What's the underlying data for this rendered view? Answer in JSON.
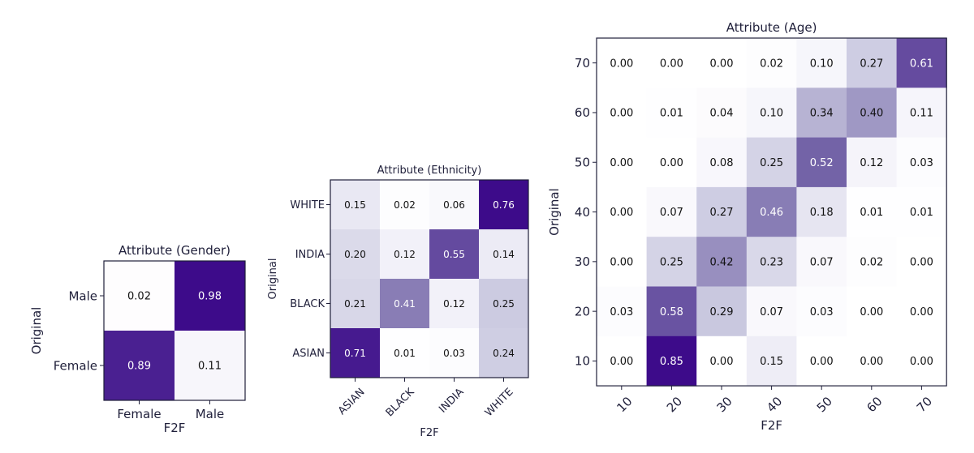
{
  "colors": {
    "dark": "#3d0b8a",
    "mid": "#7566a8",
    "light": "#c7c6de",
    "lightest": "#f4f3fa",
    "axis": "#1f1f3a"
  },
  "chart_data": [
    {
      "type": "heatmap",
      "title": "Attribute (Gender)",
      "xlabel": "F2F",
      "ylabel": "Original",
      "x_categories": [
        "Female",
        "Male"
      ],
      "y_categories_top_to_bottom": [
        "Male",
        "Female"
      ],
      "values": [
        [
          0.02,
          0.98
        ],
        [
          0.89,
          0.11
        ]
      ]
    },
    {
      "type": "heatmap",
      "title": "Attribute (Ethnicity)",
      "xlabel": "F2F",
      "ylabel": "Original",
      "x_categories": [
        "ASIAN",
        "BLACK",
        "INDIA",
        "WHITE"
      ],
      "y_categories_top_to_bottom": [
        "WHITE",
        "INDIA",
        "BLACK",
        "ASIAN"
      ],
      "values": [
        [
          0.15,
          0.02,
          0.06,
          0.76
        ],
        [
          0.2,
          0.12,
          0.55,
          0.14
        ],
        [
          0.21,
          0.41,
          0.12,
          0.25
        ],
        [
          0.71,
          0.01,
          0.03,
          0.24
        ]
      ]
    },
    {
      "type": "heatmap",
      "title": "Attribute (Age)",
      "xlabel": "F2F",
      "ylabel": "Original",
      "x_categories": [
        "10",
        "20",
        "30",
        "40",
        "50",
        "60",
        "70"
      ],
      "y_categories_top_to_bottom": [
        "70",
        "60",
        "50",
        "40",
        "30",
        "20",
        "10"
      ],
      "values": [
        [
          0.0,
          0.0,
          0.0,
          0.02,
          0.1,
          0.27,
          0.61
        ],
        [
          0.0,
          0.01,
          0.04,
          0.1,
          0.34,
          0.4,
          0.11
        ],
        [
          0.0,
          0.0,
          0.08,
          0.25,
          0.52,
          0.12,
          0.03
        ],
        [
          0.0,
          0.07,
          0.27,
          0.46,
          0.18,
          0.01,
          0.01
        ],
        [
          0.0,
          0.25,
          0.42,
          0.23,
          0.07,
          0.02,
          0.0
        ],
        [
          0.03,
          0.58,
          0.29,
          0.07,
          0.03,
          0.0,
          0.0
        ],
        [
          0.0,
          0.85,
          0.0,
          0.15,
          0.0,
          0.0,
          0.0
        ]
      ]
    }
  ]
}
